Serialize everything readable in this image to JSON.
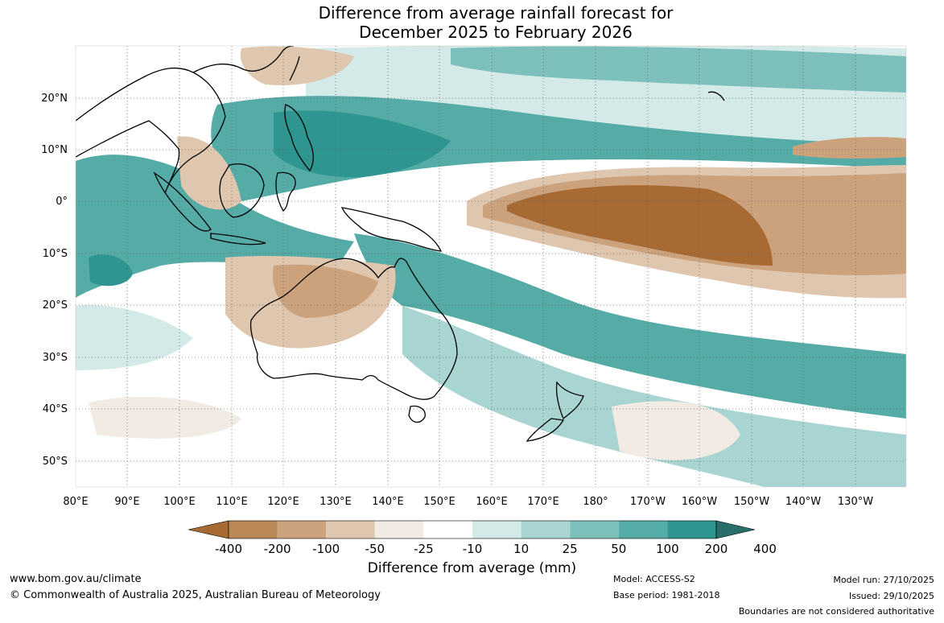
{
  "title_line1": "Difference from average rainfall forecast for",
  "title_line2": "December 2025 to February 2026",
  "lat_labels": [
    "20°N",
    "10°N",
    "0°",
    "10°S",
    "20°S",
    "30°S",
    "40°S",
    "50°S"
  ],
  "lon_labels": [
    "80°E",
    "90°E",
    "100°E",
    "110°E",
    "120°E",
    "130°E",
    "140°E",
    "150°E",
    "160°E",
    "170°E",
    "180°",
    "170°W",
    "160°W",
    "150°W",
    "140°W",
    "130°W"
  ],
  "colorbar": {
    "title": "Difference from average (mm)",
    "labels": [
      "-400",
      "-200",
      "-100",
      "-50",
      "-25",
      "-10",
      "10",
      "25",
      "50",
      "100",
      "200",
      "400"
    ],
    "colors": [
      "#a66a32",
      "#b98856",
      "#cca27d",
      "#dfc6ae",
      "#f1ebe4",
      "#ffffff",
      "#d4eae8",
      "#a8d4d1",
      "#7dbfba",
      "#55aba5",
      "#2e9590",
      "#286f6b"
    ]
  },
  "footer": {
    "website": "www.bom.gov.au/climate",
    "copyright": "© Commonwealth of Australia 2025, Australian Bureau of Meteorology",
    "model": "Model: ACCESS-S2",
    "base_period": "Base period: 1981-2018",
    "model_run": "Model run: 27/10/2025",
    "issued": "Issued: 29/10/2025",
    "disclaimer": "Boundaries are not considered authoritative"
  }
}
